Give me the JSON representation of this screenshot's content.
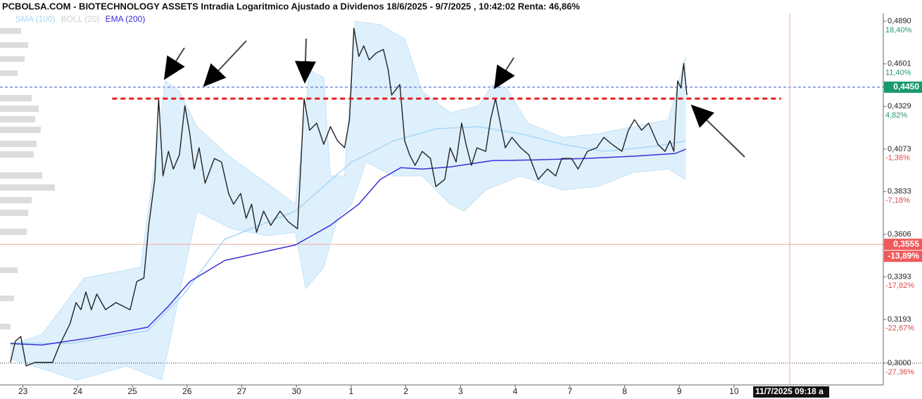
{
  "chart_data": {
    "type": "line",
    "title": "PCBOLSA.COM - BIOTECHNOLOGY ASSETS Intradia Logaritmico Ajustado a Dividenos 18/6/2025 - 9/7/2025 , 10:42:02 Renta: 46,86%",
    "log_scale": true,
    "xlim": [
      -0.42,
      15.73
    ],
    "xticks": [
      {
        "value": 0,
        "label": "23"
      },
      {
        "value": 1,
        "label": "24"
      },
      {
        "value": 2,
        "label": "25"
      },
      {
        "value": 3,
        "label": "26"
      },
      {
        "value": 4,
        "label": "27"
      },
      {
        "value": 5,
        "label": "30"
      },
      {
        "value": 6,
        "label": "1"
      },
      {
        "value": 7,
        "label": "2"
      },
      {
        "value": 8,
        "label": "3"
      },
      {
        "value": 9,
        "label": "4"
      },
      {
        "value": 10,
        "label": "7"
      },
      {
        "value": 11,
        "label": "8"
      },
      {
        "value": 12,
        "label": "9"
      },
      {
        "value": 13,
        "label": "10"
      }
    ],
    "ylim": [
      0.2908,
      0.497
    ],
    "yticks": [
      {
        "value": 0.489,
        "label": "0,4890"
      },
      {
        "value": 0.4601,
        "label": "0,4601"
      },
      {
        "value": 0.4329,
        "label": "0,4329"
      },
      {
        "value": 0.4073,
        "label": "0,4073"
      },
      {
        "value": 0.3833,
        "label": "0,3833"
      },
      {
        "value": 0.3606,
        "label": "0,3606"
      },
      {
        "value": 0.3393,
        "label": "0,3393"
      },
      {
        "value": 0.3193,
        "label": "0,3193"
      },
      {
        "value": 0.3,
        "label": "0,3000"
      }
    ],
    "y2lim": [
      -29.59,
      20.34
    ],
    "y2ticks": [
      {
        "value": 18.4,
        "label": "18,40%"
      },
      {
        "value": 11.4,
        "label": "11,40%"
      },
      {
        "value": 4.82,
        "label": "4,82%"
      },
      {
        "value": -1.36,
        "label": "-1,36%"
      },
      {
        "value": -7.18,
        "label": "-7,18%"
      },
      {
        "value": -17.82,
        "label": "-17,82%"
      },
      {
        "value": -22.67,
        "label": "-22,67%"
      },
      {
        "value": -27.36,
        "label": "-27,36%"
      }
    ],
    "series": [
      {
        "color": "#222222",
        "x": [
          -0.23,
          -0.14,
          -0.04,
          0.06,
          0.22,
          0.54,
          0.67,
          0.86,
          0.97,
          1.06,
          1.15,
          1.25,
          1.35,
          1.51,
          1.7,
          1.96,
          2.08,
          2.21,
          2.3,
          2.41,
          2.48,
          2.56,
          2.66,
          2.75,
          2.86,
          2.96,
          3.05,
          3.13,
          3.22,
          3.33,
          3.5,
          3.63,
          3.76,
          3.85,
          3.98,
          4.08,
          4.18,
          4.27,
          4.4,
          4.53,
          4.7,
          4.85,
          5.02,
          5.08,
          5.14,
          5.24,
          5.37,
          5.5,
          5.62,
          5.75,
          5.88,
          5.97,
          6.05,
          6.14,
          6.23,
          6.33,
          6.46,
          6.59,
          6.68,
          6.74,
          6.89,
          6.98,
          7.07,
          7.17,
          7.3,
          7.45,
          7.55,
          7.71,
          7.81,
          7.92,
          8.02,
          8.1,
          8.2,
          8.3,
          8.46,
          8.55,
          8.64,
          8.74,
          8.82,
          8.94,
          9.1,
          9.25,
          9.42,
          9.59,
          9.74,
          9.85,
          10.03,
          10.15,
          10.32,
          10.49,
          10.62,
          10.77,
          10.95,
          11.07,
          11.18,
          11.31,
          11.44,
          11.61,
          11.74,
          11.83,
          11.9,
          11.97,
          12.03,
          12.08,
          12.14
        ],
        "values": [
          0.3003,
          0.3095,
          0.3117,
          0.2988,
          0.3003,
          0.3003,
          0.3079,
          0.3174,
          0.3271,
          0.3238,
          0.3321,
          0.3238,
          0.3311,
          0.3238,
          0.3271,
          0.3238,
          0.3371,
          0.3388,
          0.3653,
          0.39,
          0.4378,
          0.392,
          0.406,
          0.3959,
          0.404,
          0.4334,
          0.4163,
          0.3959,
          0.4081,
          0.388,
          0.4019,
          0.3999,
          0.3823,
          0.3765,
          0.3823,
          0.369,
          0.3765,
          0.3617,
          0.3728,
          0.3653,
          0.3728,
          0.3672,
          0.3635,
          0.398,
          0.4378,
          0.4185,
          0.4227,
          0.4101,
          0.4206,
          0.4122,
          0.4081,
          0.4248,
          0.4841,
          0.465,
          0.4721,
          0.4627,
          0.4673,
          0.4697,
          0.4558,
          0.44,
          0.4467,
          0.4122,
          0.404,
          0.398,
          0.406,
          0.4019,
          0.3861,
          0.39,
          0.4081,
          0.3999,
          0.4227,
          0.4101,
          0.398,
          0.4081,
          0.406,
          0.4248,
          0.4378,
          0.4206,
          0.4081,
          0.4142,
          0.4081,
          0.404,
          0.39,
          0.3959,
          0.392,
          0.4019,
          0.4019,
          0.3959,
          0.406,
          0.4081,
          0.4142,
          0.4101,
          0.406,
          0.4185,
          0.4248,
          0.4185,
          0.4227,
          0.4101,
          0.406,
          0.4122,
          0.406,
          0.449,
          0.4445,
          0.4604,
          0.44
        ]
      },
      {
        "name": "SMA (100)",
        "color": "#a6d8f7",
        "x": [
          -0.23,
          0.86,
          2.28,
          2.92,
          3.69,
          4.98,
          6.01,
          6.78,
          7.55,
          8.33,
          9.1,
          9.87,
          10.64,
          11.54,
          12.12
        ],
        "values": [
          0.3089,
          0.3085,
          0.3142,
          0.3304,
          0.3581,
          0.3728,
          0.3999,
          0.4122,
          0.4193,
          0.4206,
          0.4163,
          0.4101,
          0.406,
          0.4089,
          0.4122
        ]
      },
      {
        "name": "BOLL (20)",
        "color": "#cfcfcf",
        "fill": "#d6ecfb",
        "x": [
          -0.23,
          0.35,
          1.12,
          2.15,
          2.41,
          2.6,
          2.86,
          3.18,
          3.82,
          4.46,
          4.98,
          5.24,
          5.5,
          5.62,
          5.88,
          6.07,
          6.53,
          6.98,
          7.3,
          7.81,
          8.33,
          8.58,
          8.84,
          9.23,
          9.87,
          10.51,
          11.16,
          11.8,
          12.12
        ],
        "values": [
          0.3079,
          0.3126,
          0.3388,
          0.344,
          0.3999,
          0.449,
          0.4423,
          0.4206,
          0.4019,
          0.388,
          0.3765,
          0.4558,
          0.4512,
          0.392,
          0.392,
          0.489,
          0.4866,
          0.4769,
          0.4423,
          0.4291,
          0.4334,
          0.4467,
          0.4445,
          0.4227,
          0.4142,
          0.4163,
          0.4206,
          0.4248,
          0.465
        ],
        "lower_x": [
          -0.23,
          0.6,
          0.99,
          1.89,
          2.54,
          2.79,
          3.18,
          3.82,
          4.47,
          4.98,
          5.17,
          5.5,
          5.75,
          6.01,
          6.27,
          6.78,
          7.3,
          7.81,
          8.07,
          8.46,
          9.1,
          9.87,
          10.51,
          11.16,
          11.8,
          12.12
        ],
        "lower_values": [
          0.3018,
          0.2958,
          0.2928,
          0.2988,
          0.2928,
          0.3222,
          0.3728,
          0.3635,
          0.3599,
          0.3617,
          0.3337,
          0.344,
          0.369,
          0.3765,
          0.3999,
          0.392,
          0.392,
          0.3765,
          0.3728,
          0.3842,
          0.392,
          0.3842,
          0.3861,
          0.3939,
          0.3959,
          0.39
        ]
      },
      {
        "name": "EMA (200)",
        "color": "#3a2fd8",
        "x": [
          -0.23,
          0.35,
          1.25,
          2.28,
          2.66,
          3.05,
          3.69,
          4.98,
          5.62,
          6.14,
          6.53,
          6.91,
          7.3,
          7.81,
          8.58,
          9.36,
          10.26,
          11.16,
          11.93,
          12.12
        ],
        "values": [
          0.3085,
          0.3079,
          0.3111,
          0.3158,
          0.3254,
          0.3371,
          0.3474,
          0.3552,
          0.3653,
          0.3765,
          0.39,
          0.3967,
          0.3959,
          0.3971,
          0.4007,
          0.4011,
          0.4019,
          0.4032,
          0.4048,
          0.4073
        ]
      }
    ],
    "levels": [
      {
        "value": 0.445,
        "label": "0,4450",
        "line_color": "#3a4fd0",
        "style": "dashed",
        "color": "#1a9a6c"
      },
      {
        "value": 0.3555,
        "label": "0,3555",
        "line_color": "#f4a6a6",
        "style": "solid",
        "color": "#f05a5a",
        "percent": {
          "value": -13.89,
          "label": "-13,89%"
        }
      },
      {
        "value": 0.3,
        "line_color": "#222222",
        "style": "dotted"
      }
    ],
    "resistance": {
      "x": [
        1.63,
        13.86
      ],
      "values": [
        0.4378,
        0.4378
      ],
      "color": "#e41e1e"
    },
    "cursor": {
      "x": 14.02,
      "label": "11/7/2025 09:18 a",
      "color": "#f4a6a6"
    }
  }
}
